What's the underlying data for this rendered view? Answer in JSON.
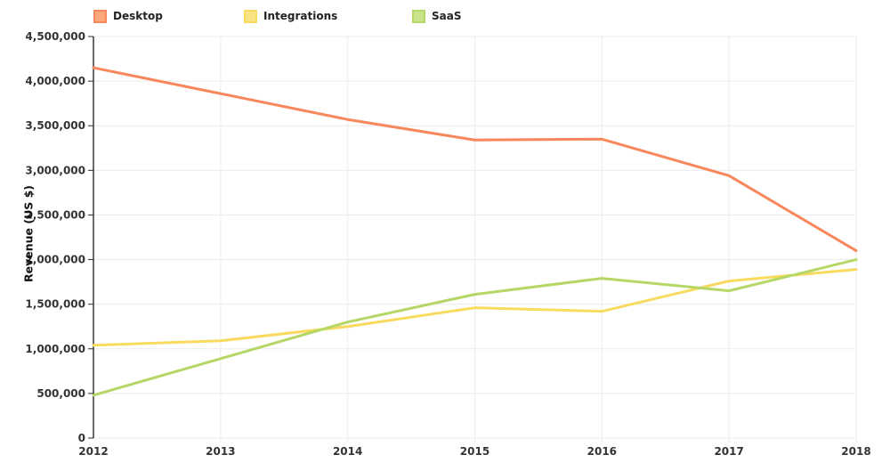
{
  "colors": {
    "background": "#ffffff",
    "grid": "#ececec",
    "axis": "#2b2b2b",
    "tick_label": "#333333"
  },
  "chart_data": {
    "type": "line",
    "title": "",
    "xlabel": "",
    "ylabel": "Revenue (US $)",
    "legend_position": "top",
    "grid": true,
    "x": [
      "2012",
      "2013",
      "2014",
      "2015",
      "2016",
      "2017",
      "2018"
    ],
    "ylim": [
      0,
      4500000
    ],
    "ytick_step": 500000,
    "ytick_labels": [
      "0",
      "500,000",
      "1,000,000",
      "1,500,000",
      "2,000,000",
      "2,500,000",
      "3,000,000",
      "3,500,000",
      "4,000,000",
      "4,500,000"
    ],
    "series": [
      {
        "name": "Desktop",
        "color": "#f8875c",
        "legend_fill": "#faa97d",
        "values": [
          4150000,
          3860000,
          3570000,
          3340000,
          3350000,
          2940000,
          2100000
        ]
      },
      {
        "name": "Integrations",
        "color": "#f8da5e",
        "legend_fill": "#fae386",
        "values": [
          1040000,
          1090000,
          1250000,
          1460000,
          1420000,
          1760000,
          1890000
        ]
      },
      {
        "name": "SaaS",
        "color": "#b4d765",
        "legend_fill": "#cae48d",
        "values": [
          480000,
          890000,
          1300000,
          1610000,
          1790000,
          1650000,
          2000000
        ]
      }
    ]
  }
}
